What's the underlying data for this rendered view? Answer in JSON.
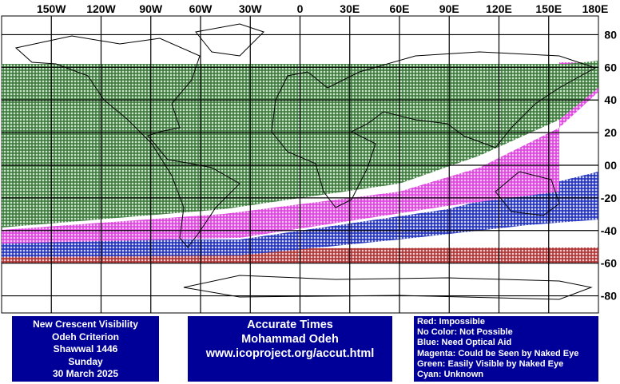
{
  "map": {
    "lon_labels": [
      "150W",
      "120W",
      "90W",
      "60W",
      "30W",
      "0",
      "30E",
      "60E",
      "90E",
      "120E",
      "150E",
      "180E"
    ],
    "lat_labels": [
      "80",
      "60",
      "40",
      "20",
      "00",
      "-20",
      "-40",
      "-60",
      "-80"
    ]
  },
  "info_box": [
    "New Crescent Visibility",
    "Odeh Criterion",
    "Shawwal 1446",
    "Sunday",
    "30 March 2025"
  ],
  "credit_box": [
    "Accurate Times",
    "Mohammad Odeh",
    "www.icoproject.org/accut.html"
  ],
  "legend_box": [
    "Red: Impossible",
    "No Color: Not Possible",
    "Blue: Need Optical Aid",
    "Magenta: Could be Seen by Naked Eye",
    "Green: Easily Visible by Naked Eye",
    "Cyan: Unknown"
  ]
}
